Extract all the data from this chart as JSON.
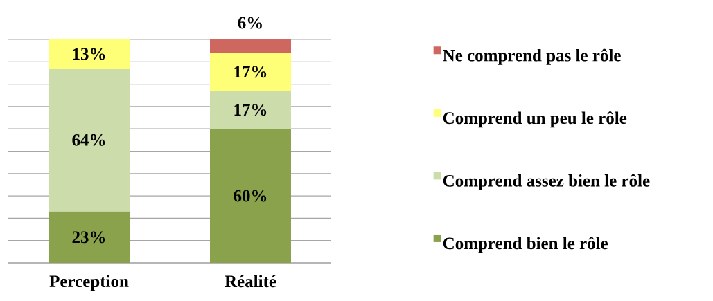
{
  "chart_data": {
    "type": "bar",
    "stacked": true,
    "categories": [
      "Perception",
      "Réalité"
    ],
    "series": [
      {
        "name": "Comprend bien le rôle",
        "color": "#8aa24b",
        "values": [
          23,
          60
        ],
        "value_labels": [
          "23%",
          "60%"
        ]
      },
      {
        "name": "Comprend assez bien le rôle",
        "color": "#ccdcaa",
        "values": [
          64,
          17
        ],
        "value_labels": [
          "64%",
          "17%"
        ]
      },
      {
        "name": "Comprend un peu le rôle",
        "color": "#ffff77",
        "values": [
          13,
          17
        ],
        "value_labels": [
          "13%",
          "17%"
        ]
      },
      {
        "name": "Ne comprend pas le rôle",
        "color": "#cd6760",
        "values": [
          null,
          6
        ],
        "value_labels": [
          null,
          "6%"
        ]
      }
    ],
    "ylim": [
      0,
      100
    ],
    "yticks": [
      {
        "value": 0,
        "label": null
      },
      {
        "value": 10,
        "label": null
      },
      {
        "value": 20,
        "label": null
      },
      {
        "value": 30,
        "label": null
      },
      {
        "value": 40,
        "label": null
      },
      {
        "value": 50,
        "label": null
      },
      {
        "value": 60,
        "label": null
      },
      {
        "value": 70,
        "label": null
      },
      {
        "value": 80,
        "label": null
      },
      {
        "value": 90,
        "label": null
      },
      {
        "value": 100,
        "label": null
      }
    ],
    "grid": "y",
    "legend": "right",
    "tick_labels": "x"
  }
}
